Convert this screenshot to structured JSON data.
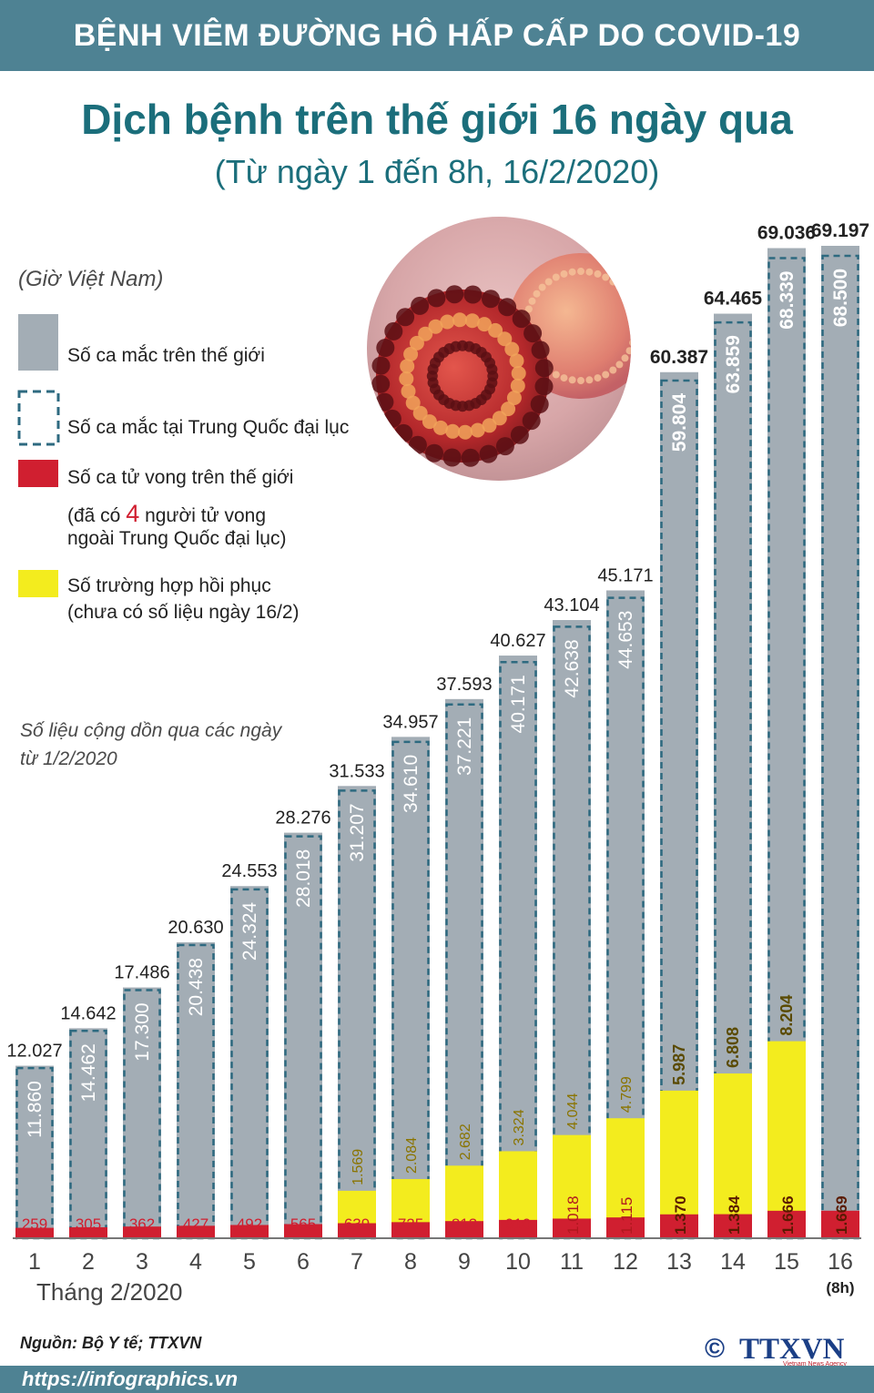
{
  "header": {
    "band_title": "BỆNH VIÊM ĐƯỜNG HÔ HẤP CẤP DO COVID-19"
  },
  "title": "Dịch bệnh trên thế giới 16 ngày qua",
  "subtitle": "(Từ ngày 1 đến 8h, 16/2/2020)",
  "legend": {
    "timezone_note": "(Giờ Việt Nam)",
    "world_cases": "Số ca mắc trên thế giới",
    "china_cases": "Số ca mắc tại Trung Quốc đại lục",
    "world_deaths": "Số ca tử vong trên thế giới",
    "deaths_note_before": "(đã có ",
    "deaths_note_number": "4",
    "deaths_note_after": " người tử vong",
    "deaths_note_line2": "ngoài Trung Quốc đại lục)",
    "recovered": "Số trường hợp hồi phục",
    "recovered_note": "(chưa có số liệu ngày 16/2)"
  },
  "cumulative_note_line1": "Số liệu cộng dồn qua các ngày",
  "cumulative_note_line2": "từ 1/2/2020",
  "month_label": "Tháng 2/2020",
  "source": "Nguồn: Bộ Y tế; TTXVN",
  "footer_url": "https://infographics.vn",
  "logo": {
    "symbol": "©",
    "text": "TTXVN",
    "tagline": "Vietnam News Agency"
  },
  "colors": {
    "band": "#4e8293",
    "title": "#1b6e7b",
    "world_bar": "#a3adb5",
    "china_dash": "#2e6a80",
    "deaths": "#d01f30",
    "recovered": "#f3ec1e"
  },
  "chart_data": {
    "type": "bar",
    "categories": [
      "1",
      "2",
      "3",
      "4",
      "5",
      "6",
      "7",
      "8",
      "9",
      "10",
      "11",
      "12",
      "13",
      "14",
      "15",
      "16"
    ],
    "category_note_16": "(8h)",
    "series": [
      {
        "name": "Số ca mắc trên thế giới",
        "values": [
          "12.027",
          "14.642",
          "17.486",
          "20.630",
          "24.553",
          "28.276",
          "31.533",
          "34.957",
          "37.593",
          "40.627",
          "43.104",
          "45.171",
          "60.387",
          "64.465",
          "69.036",
          "69.197"
        ]
      },
      {
        "name": "Số ca mắc tại Trung Quốc đại lục",
        "values": [
          "11.860",
          "14.462",
          "17.300",
          "20.438",
          "24.324",
          "28.018",
          "31.207",
          "34.610",
          "37.221",
          "40.171",
          "42.638",
          "44.653",
          "59.804",
          "63.859",
          "68.339",
          "68.500"
        ]
      },
      {
        "name": "Số ca tử vong trên thế giới",
        "values": [
          "259",
          "305",
          "362",
          "427",
          "492",
          "565",
          "639",
          "725",
          "813",
          "910",
          "1.018",
          "1.115",
          "1.370",
          "1.384",
          "1.666",
          "1.669"
        ]
      },
      {
        "name": "Số trường hợp hồi phục",
        "values": [
          "",
          "",
          "",
          "",
          "",
          "",
          "1.569",
          "2.084",
          "2.682",
          "3.324",
          "4.044",
          "4.799",
          "5.987",
          "6.808",
          "8.204",
          ""
        ]
      }
    ],
    "ylim": [
      0,
      70000
    ]
  }
}
